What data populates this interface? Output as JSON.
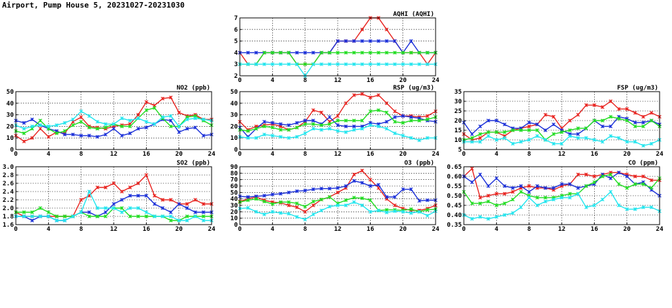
{
  "title": "Airport, Pump House 5, 20231027-20231030",
  "colors": {
    "red": "#e8231f",
    "blue": "#1a2fd8",
    "green": "#22dd22",
    "cyan": "#22e5ee"
  },
  "chart_data": [
    {
      "id": "aqhi",
      "type": "line",
      "title": "AQHI (AQHI)",
      "xlim": [
        0,
        24
      ],
      "xticks": [
        "0",
        "4",
        "8",
        "12",
        "16",
        "20",
        "24"
      ],
      "ylim": [
        2,
        7
      ],
      "yticks": [
        "2",
        "3",
        "4",
        "5",
        "6",
        "7"
      ],
      "grid": true,
      "series": [
        {
          "color": "red",
          "values": [
            4,
            3,
            3,
            4,
            4,
            4,
            4,
            3,
            3,
            3,
            4,
            4,
            5,
            5,
            5,
            6,
            7,
            7,
            6,
            5,
            4,
            4,
            4,
            3,
            4
          ]
        },
        {
          "color": "blue",
          "values": [
            4,
            4,
            4,
            4,
            4,
            4,
            4,
            4,
            4,
            4,
            4,
            4,
            5,
            5,
            5,
            5,
            5,
            5,
            5,
            5,
            4,
            5,
            4,
            4,
            4
          ]
        },
        {
          "color": "green",
          "values": [
            3,
            3,
            3,
            4,
            4,
            4,
            4,
            3,
            3,
            3,
            4,
            4,
            4,
            4,
            4,
            4,
            4,
            4,
            4,
            4,
            4,
            4,
            4,
            4,
            4
          ]
        },
        {
          "color": "cyan",
          "values": [
            3,
            3,
            3,
            3,
            3,
            3,
            3,
            3,
            2,
            3,
            3,
            3,
            3,
            3,
            3,
            3,
            3,
            3,
            3,
            3,
            3,
            3,
            3,
            3,
            3
          ]
        }
      ]
    },
    {
      "id": "no2",
      "type": "line",
      "title": "NO2 (ppb)",
      "xlim": [
        0,
        24
      ],
      "xticks": [
        "0",
        "4",
        "8",
        "12",
        "16",
        "20",
        "24"
      ],
      "ylim": [
        0,
        50
      ],
      "yticks": [
        "0",
        "10",
        "20",
        "30",
        "40",
        "50"
      ],
      "grid": true,
      "series": [
        {
          "color": "red",
          "values": [
            12,
            7,
            10,
            18,
            11,
            15,
            14,
            24,
            28,
            20,
            19,
            18,
            20,
            21,
            22,
            30,
            41,
            38,
            44,
            45,
            32,
            29,
            30,
            26,
            26
          ]
        },
        {
          "color": "blue",
          "values": [
            25,
            23,
            26,
            21,
            18,
            16,
            13,
            13,
            12,
            12,
            11,
            13,
            18,
            12,
            14,
            18,
            19,
            22,
            26,
            25,
            15,
            18,
            19,
            12,
            13
          ]
        },
        {
          "color": "green",
          "values": [
            16,
            14,
            18,
            25,
            18,
            14,
            16,
            21,
            24,
            19,
            18,
            19,
            22,
            20,
            20,
            27,
            34,
            36,
            27,
            20,
            20,
            28,
            29,
            25,
            21
          ]
        },
        {
          "color": "cyan",
          "values": [
            21,
            18,
            20,
            21,
            20,
            21,
            23,
            26,
            33,
            29,
            24,
            22,
            22,
            27,
            25,
            27,
            24,
            22,
            28,
            29,
            20,
            26,
            27,
            26,
            25
          ]
        }
      ]
    },
    {
      "id": "rsp",
      "type": "line",
      "title": "RSP (ug/m3)",
      "xlim": [
        0,
        24
      ],
      "xticks": [
        "0",
        "4",
        "8",
        "12",
        "16",
        "20",
        "24"
      ],
      "ylim": [
        0,
        50
      ],
      "yticks": [
        "0",
        "10",
        "20",
        "30",
        "40",
        "50"
      ],
      "grid": true,
      "series": [
        {
          "color": "red",
          "values": [
            24,
            17,
            20,
            21,
            22,
            20,
            17,
            19,
            24,
            34,
            32,
            24,
            29,
            40,
            47,
            48,
            45,
            47,
            40,
            33,
            29,
            29,
            28,
            29,
            33
          ]
        },
        {
          "color": "blue",
          "values": [
            19,
            11,
            18,
            24,
            23,
            22,
            21,
            23,
            25,
            25,
            22,
            28,
            21,
            20,
            20,
            20,
            23,
            22,
            24,
            28,
            29,
            28,
            27,
            25,
            24
          ]
        },
        {
          "color": "green",
          "values": [
            17,
            16,
            18,
            20,
            19,
            17,
            17,
            19,
            22,
            22,
            21,
            22,
            25,
            25,
            25,
            25,
            33,
            34,
            32,
            24,
            23,
            25,
            25,
            26,
            28
          ]
        },
        {
          "color": "cyan",
          "values": [
            11,
            10,
            10,
            13,
            12,
            11,
            10,
            11,
            14,
            18,
            17,
            18,
            16,
            15,
            17,
            18,
            21,
            20,
            18,
            14,
            12,
            10,
            8,
            10,
            10
          ]
        }
      ]
    },
    {
      "id": "fsp",
      "type": "line",
      "title": "FSP (ug/m3)",
      "xlim": [
        0,
        24
      ],
      "xticks": [
        "0",
        "4",
        "8",
        "12",
        "16",
        "20",
        "24"
      ],
      "ylim": [
        5,
        35
      ],
      "yticks": [
        "5",
        "10",
        "15",
        "20",
        "25",
        "30",
        "35"
      ],
      "grid": true,
      "series": [
        {
          "color": "red",
          "values": [
            13,
            10,
            11,
            14,
            14,
            12,
            15,
            16,
            17,
            18,
            23,
            22,
            16,
            20,
            23,
            28,
            28,
            27,
            30,
            26,
            26,
            24,
            22,
            24,
            22
          ]
        },
        {
          "color": "blue",
          "values": [
            19,
            13,
            17,
            20,
            20,
            18,
            16,
            16,
            19,
            18,
            15,
            18,
            15,
            13,
            13,
            16,
            20,
            17,
            17,
            22,
            21,
            19,
            19,
            20,
            18
          ]
        },
        {
          "color": "green",
          "values": [
            10,
            11,
            13,
            14,
            14,
            14,
            15,
            15,
            15,
            15,
            10,
            13,
            14,
            15,
            16,
            16,
            20,
            20,
            22,
            21,
            20,
            17,
            17,
            20,
            17
          ]
        },
        {
          "color": "cyan",
          "values": [
            9,
            9,
            9,
            12,
            10,
            11,
            8,
            9,
            10,
            12,
            10,
            8,
            8,
            12,
            11,
            11,
            10,
            9,
            12,
            11,
            9,
            9,
            7,
            8,
            10
          ]
        }
      ]
    },
    {
      "id": "so2",
      "type": "line",
      "title": "SO2 (ppb)",
      "xlim": [
        0,
        24
      ],
      "xticks": [
        "0",
        "4",
        "8",
        "12",
        "16",
        "20",
        "24"
      ],
      "ylim": [
        1.6,
        3.0
      ],
      "yticks": [
        "1.6",
        "1.8",
        "2.0",
        "2.2",
        "2.4",
        "2.6",
        "2.8",
        "3.0"
      ],
      "grid": true,
      "series": [
        {
          "color": "red",
          "values": [
            1.9,
            1.8,
            1.8,
            1.8,
            1.8,
            1.8,
            1.8,
            1.8,
            2.2,
            2.3,
            2.5,
            2.5,
            2.6,
            2.4,
            2.5,
            2.6,
            2.8,
            2.3,
            2.2,
            2.2,
            2.1,
            2.1,
            2.2,
            2.1,
            2.1
          ]
        },
        {
          "color": "blue",
          "values": [
            1.8,
            1.8,
            1.7,
            1.8,
            1.8,
            1.7,
            1.7,
            1.8,
            1.9,
            1.9,
            1.8,
            1.9,
            2.1,
            2.2,
            2.3,
            2.3,
            2.3,
            2.1,
            2.0,
            1.9,
            2.1,
            2.0,
            1.9,
            1.9,
            1.9
          ]
        },
        {
          "color": "green",
          "values": [
            1.9,
            1.9,
            1.9,
            2.0,
            1.9,
            1.8,
            1.8,
            1.8,
            1.9,
            1.8,
            1.8,
            1.8,
            2.0,
            2.0,
            1.8,
            1.8,
            1.8,
            1.8,
            1.8,
            1.7,
            1.7,
            1.8,
            1.8,
            1.8,
            1.8
          ]
        },
        {
          "color": "cyan",
          "values": [
            1.8,
            1.8,
            1.8,
            1.8,
            1.8,
            1.7,
            1.7,
            1.8,
            1.9,
            2.4,
            2.0,
            2.0,
            2.0,
            1.9,
            2.0,
            2.0,
            1.9,
            1.8,
            1.8,
            1.8,
            1.7,
            1.7,
            1.8,
            1.7,
            1.7
          ]
        }
      ]
    },
    {
      "id": "o3",
      "type": "line",
      "title": "O3 (ppb)",
      "xlim": [
        0,
        24
      ],
      "xticks": [
        "0",
        "4",
        "8",
        "12",
        "16",
        "20",
        "24"
      ],
      "ylim": [
        0,
        90
      ],
      "yticks": [
        "0",
        "10",
        "20",
        "30",
        "40",
        "50",
        "60",
        "70",
        "80",
        "90"
      ],
      "grid": true,
      "series": [
        {
          "color": "red",
          "values": [
            36,
            40,
            43,
            38,
            35,
            34,
            30,
            27,
            20,
            30,
            39,
            43,
            50,
            57,
            78,
            84,
            70,
            57,
            40,
            30,
            25,
            22,
            22,
            25,
            30
          ]
        },
        {
          "color": "blue",
          "values": [
            44,
            43,
            44,
            45,
            47,
            48,
            50,
            52,
            53,
            55,
            56,
            56,
            57,
            60,
            68,
            65,
            60,
            62,
            43,
            43,
            55,
            55,
            37,
            38,
            38
          ]
        },
        {
          "color": "green",
          "values": [
            35,
            38,
            40,
            36,
            32,
            35,
            35,
            33,
            28,
            36,
            39,
            43,
            33,
            38,
            42,
            41,
            38,
            22,
            23,
            23,
            22,
            24,
            20,
            23,
            24
          ]
        },
        {
          "color": "cyan",
          "values": [
            25,
            26,
            20,
            16,
            20,
            18,
            17,
            12,
            8,
            16,
            22,
            28,
            30,
            30,
            35,
            30,
            20,
            22,
            19,
            21,
            20,
            18,
            20,
            14,
            21
          ]
        }
      ]
    },
    {
      "id": "co",
      "type": "line",
      "title": "CO (ppm)",
      "xlim": [
        0,
        24
      ],
      "xticks": [
        "0",
        "4",
        "8",
        "12",
        "16",
        "20",
        "24"
      ],
      "ylim": [
        0.35,
        0.65
      ],
      "yticks": [
        "0.35",
        "0.40",
        "0.45",
        "0.50",
        "0.55",
        "0.60",
        "0.65"
      ],
      "grid": true,
      "series": [
        {
          "color": "red",
          "values": [
            0.6,
            0.64,
            0.49,
            0.5,
            0.51,
            0.51,
            0.52,
            0.54,
            0.55,
            0.54,
            0.54,
            0.53,
            0.55,
            0.56,
            0.61,
            0.61,
            0.6,
            0.61,
            0.62,
            0.62,
            0.61,
            0.6,
            0.6,
            0.58,
            0.58
          ]
        },
        {
          "color": "blue",
          "values": [
            0.6,
            0.57,
            0.61,
            0.55,
            0.59,
            0.55,
            0.54,
            0.55,
            0.52,
            0.55,
            0.54,
            0.54,
            0.56,
            0.56,
            0.54,
            0.55,
            0.56,
            0.61,
            0.59,
            0.62,
            0.6,
            0.56,
            0.57,
            0.53,
            0.5
          ]
        },
        {
          "color": "green",
          "values": [
            0.52,
            0.46,
            0.46,
            0.47,
            0.45,
            0.46,
            0.48,
            0.52,
            0.5,
            0.49,
            0.49,
            0.49,
            0.5,
            0.51,
            0.51,
            0.55,
            0.57,
            0.6,
            0.61,
            0.56,
            0.54,
            0.56,
            0.56,
            0.54,
            0.59
          ]
        },
        {
          "color": "cyan",
          "values": [
            0.4,
            0.38,
            0.39,
            0.38,
            0.39,
            0.4,
            0.41,
            0.44,
            0.49,
            0.45,
            0.47,
            0.48,
            0.49,
            0.49,
            0.51,
            0.44,
            0.45,
            0.48,
            0.52,
            0.45,
            0.43,
            0.43,
            0.44,
            0.44,
            0.42
          ]
        }
      ]
    }
  ]
}
